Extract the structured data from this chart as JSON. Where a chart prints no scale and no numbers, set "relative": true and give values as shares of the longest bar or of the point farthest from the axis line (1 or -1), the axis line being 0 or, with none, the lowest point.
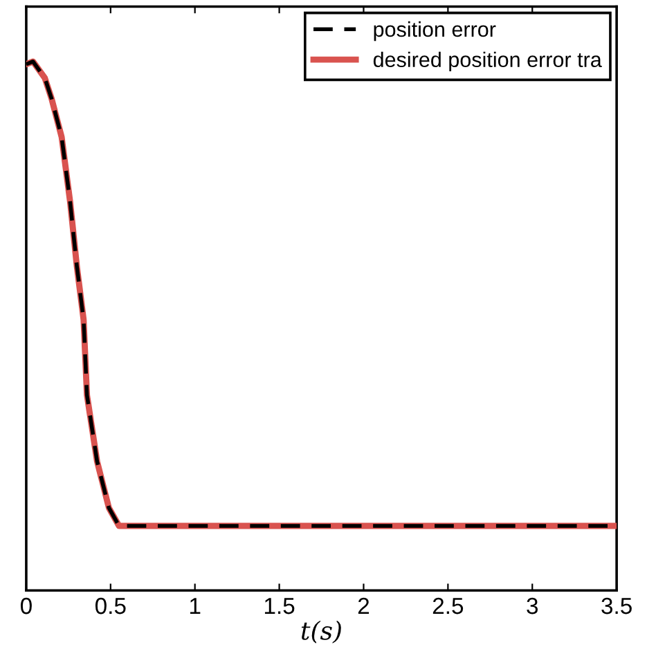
{
  "chart_data": {
    "type": "line",
    "relative": true,
    "xlabel": "t(s)",
    "x": [
      0,
      0.04,
      0.11,
      0.15,
      0.21,
      0.26,
      0.3,
      0.34,
      0.36,
      0.42,
      0.49,
      0.55,
      1.0,
      1.5,
      2.0,
      2.5,
      3.0,
      3.5
    ],
    "series": [
      {
        "name": "position error",
        "color": "#000000",
        "line_style": "dashed",
        "values": [
          0.995,
          1.0,
          0.969,
          0.93,
          0.857,
          0.735,
          0.613,
          0.512,
          0.369,
          0.244,
          0.156,
          0.122,
          0.122,
          0.122,
          0.122,
          0.122,
          0.122,
          0.122
        ]
      },
      {
        "name": "desired position error tra",
        "color": "#d9534f",
        "line_style": "solid",
        "values": [
          0.995,
          1.0,
          0.969,
          0.93,
          0.857,
          0.735,
          0.613,
          0.512,
          0.369,
          0.244,
          0.156,
          0.122,
          0.122,
          0.122,
          0.122,
          0.122,
          0.122,
          0.122
        ]
      }
    ],
    "xlim": [
      0,
      3.5
    ],
    "xticks": [
      0,
      0.5,
      1,
      1.5,
      2,
      2.5,
      3,
      3.5
    ],
    "tick_labels": "x",
    "legend": "top right",
    "grid": false
  }
}
